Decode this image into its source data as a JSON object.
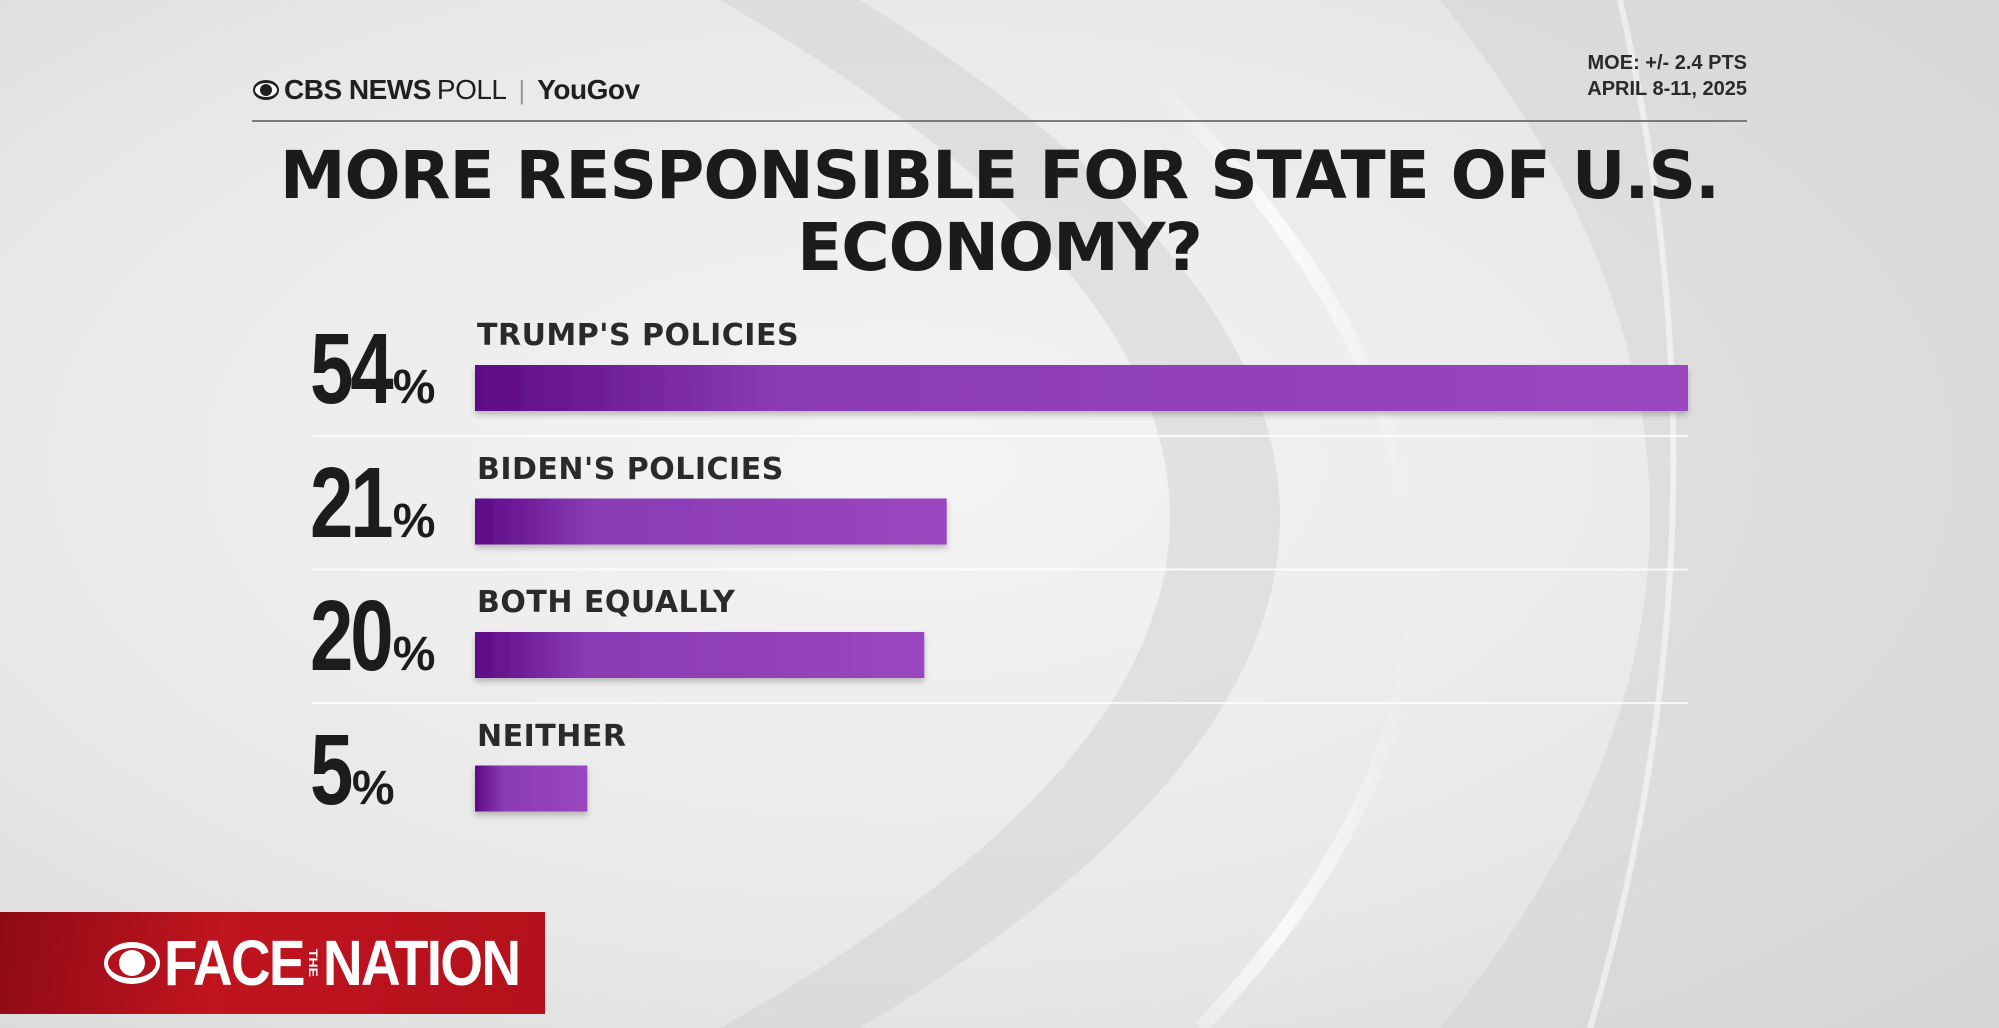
{
  "header": {
    "brand_cbs": "CBS NEWS",
    "brand_poll": "POLL",
    "brand_separator": "|",
    "brand_partner": "YouGov",
    "moe": "MOE: +/- 2.4 PTS",
    "dates": "APRIL 8-11, 2025"
  },
  "colors": {
    "bar_start": "#5d0a86",
    "bar_end": "#9a46c0",
    "logo_red": "#b3111c"
  },
  "chart_data": {
    "type": "bar",
    "orientation": "horizontal",
    "title": "MORE RESPONSIBLE FOR STATE OF U.S. ECONOMY?",
    "categories": [
      "TRUMP'S POLICIES",
      "BIDEN'S POLICIES",
      "BOTH EQUALLY",
      "NEITHER"
    ],
    "values": [
      54,
      21,
      20,
      5
    ],
    "value_labels": [
      "54",
      "21",
      "20",
      "5"
    ],
    "unit": "%",
    "xlim": [
      0,
      54
    ],
    "grid": false,
    "legend": "none"
  },
  "footer": {
    "logo_face": "FACE",
    "logo_the": "THE",
    "logo_nation": "NATION"
  }
}
